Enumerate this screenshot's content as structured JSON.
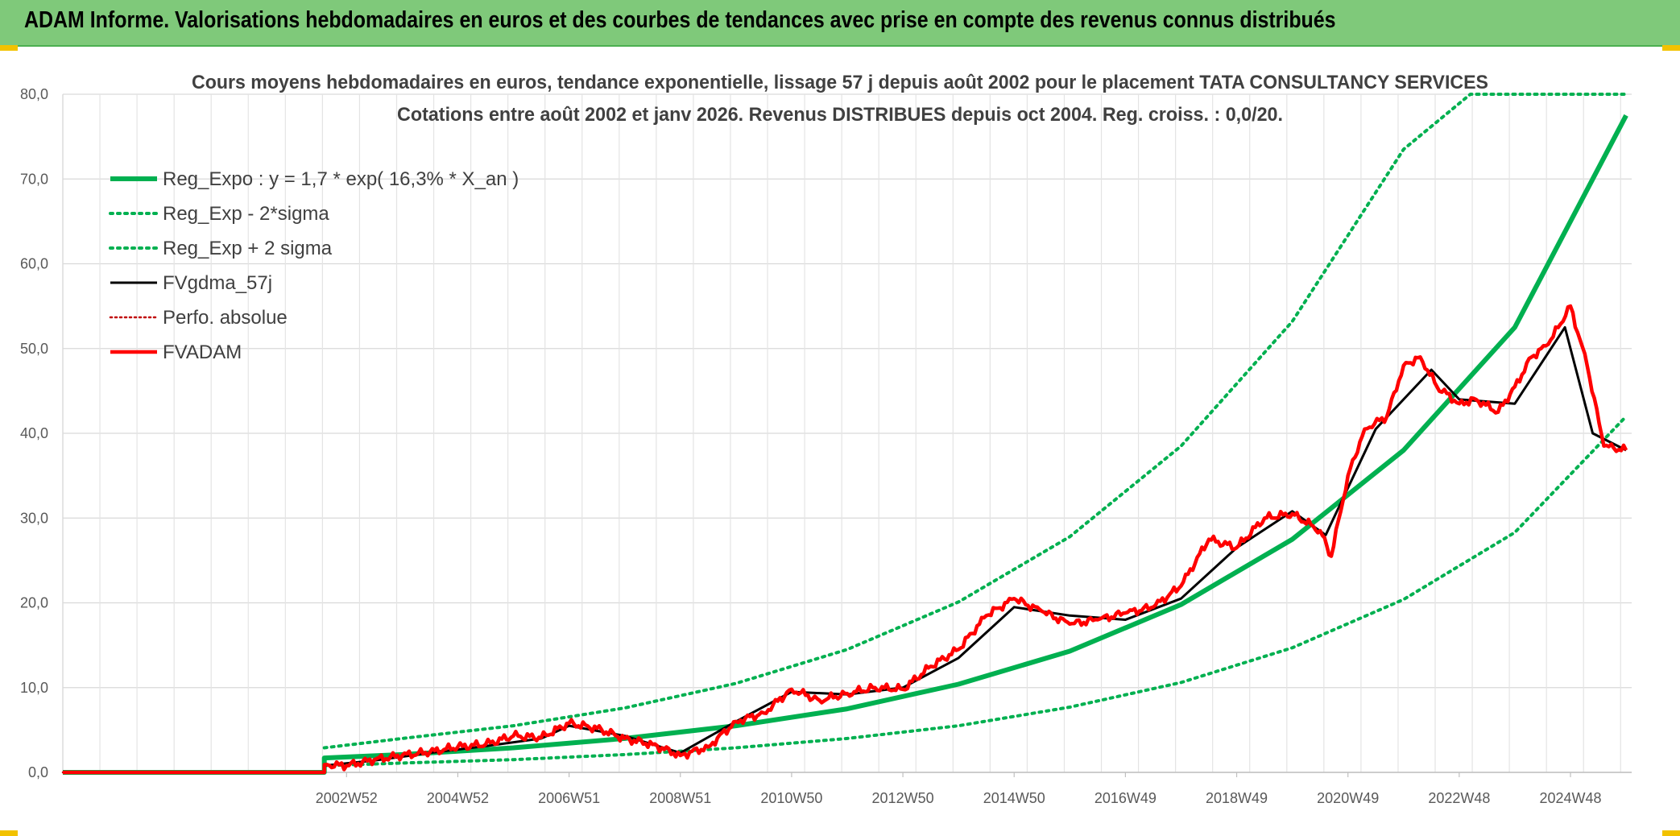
{
  "header": {
    "title": "ADAM Informe. Valorisations hebdomadaires en euros et des courbes de tendances avec prise en compte des revenus connus distribués"
  },
  "colors": {
    "header_bg": "#7fc97a",
    "reg_expo": "#00b050",
    "sigma": "#00b050",
    "fvgdma": "#000000",
    "perfo": "#c00000",
    "fvadam": "#ff0000",
    "corner": "#f2c200"
  },
  "chart_data": {
    "type": "line",
    "title": "Cours moyens hebdomadaires en euros, tendance exponentielle, lissage 57 j depuis août 2002 pour le placement TATA CONSULTANCY SERVICES",
    "subtitle": "Cotations entre août 2002 et janv 2026. Revenus DISTRIBUES depuis oct 2004. Reg. croiss. : 0,0/20.",
    "xlabel": "",
    "ylabel": "",
    "ylim": [
      0,
      80
    ],
    "xlim": [
      1997.9,
      2026.1
    ],
    "y_ticks": [
      "0,0",
      "10,0",
      "20,0",
      "30,0",
      "40,0",
      "50,0",
      "60,0",
      "70,0",
      "80,0"
    ],
    "x_ticks": [
      {
        "label": "2002W52",
        "x": 2003.0
      },
      {
        "label": "2004W52",
        "x": 2005.0
      },
      {
        "label": "2006W51",
        "x": 2007.0
      },
      {
        "label": "2008W51",
        "x": 2009.0
      },
      {
        "label": "2010W50",
        "x": 2011.0
      },
      {
        "label": "2012W50",
        "x": 2013.0
      },
      {
        "label": "2014W50",
        "x": 2015.0
      },
      {
        "label": "2016W49",
        "x": 2017.0
      },
      {
        "label": "2018W49",
        "x": 2019.0
      },
      {
        "label": "2020W49",
        "x": 2021.0
      },
      {
        "label": "2022W48",
        "x": 2023.0
      },
      {
        "label": "2024W48",
        "x": 2025.0
      }
    ],
    "grid": true,
    "legend_position": "top-left",
    "legend": [
      {
        "name": "Reg_Expo : y = 1,7 * exp( 16,3% *  X_an )",
        "style": "solid-thick",
        "color": "#00b050"
      },
      {
        "name": "Reg_Exp - 2*sigma",
        "style": "dotted",
        "color": "#00b050"
      },
      {
        "name": "Reg_Exp + 2 sigma",
        "style": "dotted",
        "color": "#00b050"
      },
      {
        "name": "FVgdma_57j",
        "style": "solid",
        "color": "#000000"
      },
      {
        "name": "Perfo. absolue",
        "style": "dotted",
        "color": "#c00000"
      },
      {
        "name": "FVADAM",
        "style": "solid-thick",
        "color": "#ff0000"
      }
    ],
    "series": [
      {
        "name": "Reg_Expo : y = 1,7 * exp( 16,3% *  X_an )",
        "x": [
          1997.9,
          2002.6,
          2002.6,
          2004,
          2006,
          2008,
          2010,
          2012,
          2014,
          2016,
          2018,
          2020,
          2022,
          2024,
          2026
        ],
        "y": [
          0,
          0,
          1.7,
          2.1,
          2.9,
          4.0,
          5.5,
          7.5,
          10.4,
          14.3,
          19.8,
          27.5,
          38.0,
          52.5,
          77.5
        ]
      },
      {
        "name": "Reg_Exp - 2*sigma",
        "x": [
          2002.6,
          2004,
          2006,
          2008,
          2010,
          2012,
          2014,
          2016,
          2018,
          2020,
          2022,
          2024,
          2026
        ],
        "y": [
          0.8,
          1.1,
          1.5,
          2.1,
          2.9,
          4.0,
          5.5,
          7.7,
          10.6,
          14.7,
          20.4,
          28.3,
          42.0
        ]
      },
      {
        "name": "Reg_Exp + 2 sigma",
        "x": [
          2002.6,
          2004,
          2006,
          2008,
          2010,
          2012,
          2014,
          2016,
          2018,
          2020,
          2022,
          2023.2,
          2026
        ],
        "y": [
          2.9,
          4.0,
          5.5,
          7.6,
          10.5,
          14.5,
          20.1,
          27.8,
          38.5,
          53.2,
          73.5,
          80,
          80
        ]
      },
      {
        "name": "FVgdma_57j",
        "x": [
          2002.6,
          2003.5,
          2004.5,
          2005.5,
          2006.5,
          2007.0,
          2008.0,
          2009.0,
          2010.0,
          2011.0,
          2012.0,
          2013.0,
          2014.0,
          2015.0,
          2016.0,
          2017.0,
          2018.0,
          2019.0,
          2020.0,
          2020.6,
          2021.5,
          2022.5,
          2023.0,
          2024.0,
          2024.9,
          2025.4,
          2026.0
        ],
        "y": [
          0.8,
          1.4,
          2.3,
          3.1,
          4.0,
          5.5,
          4.3,
          2.3,
          6.0,
          9.5,
          9.2,
          10.0,
          13.5,
          19.5,
          18.5,
          18.0,
          20.5,
          26.5,
          30.8,
          28.0,
          40.5,
          47.5,
          44.0,
          43.5,
          52.5,
          40.0,
          38.0
        ]
      },
      {
        "name": "Perfo. absolue",
        "x": [
          1997.9,
          2002.6
        ],
        "y": [
          0,
          0
        ]
      },
      {
        "name": "FVADAM",
        "x": [
          1997.9,
          2002.6,
          2002.6,
          2003.0,
          2003.5,
          2004.0,
          2004.5,
          2005.0,
          2005.5,
          2006.0,
          2006.5,
          2007.0,
          2007.5,
          2008.0,
          2008.5,
          2009.0,
          2009.5,
          2010.0,
          2010.5,
          2011.0,
          2011.5,
          2012.0,
          2012.5,
          2013.0,
          2013.5,
          2014.0,
          2014.5,
          2015.0,
          2015.5,
          2016.0,
          2016.5,
          2017.0,
          2017.5,
          2018.0,
          2018.5,
          2019.0,
          2019.5,
          2020.0,
          2020.5,
          2020.7,
          2021.0,
          2021.3,
          2021.7,
          2022.0,
          2022.3,
          2022.6,
          2023.0,
          2023.3,
          2023.7,
          2024.0,
          2024.3,
          2024.6,
          2025.0,
          2025.3,
          2025.6,
          2026.0
        ],
        "y": [
          0,
          0,
          0.9,
          0.8,
          1.5,
          2.0,
          2.4,
          3.0,
          3.3,
          4.3,
          4.1,
          5.8,
          5.2,
          4.0,
          3.3,
          2.0,
          3.0,
          6.0,
          7.0,
          9.8,
          8.5,
          9.3,
          10.0,
          9.8,
          12.5,
          14.5,
          18.5,
          20.5,
          19.0,
          17.5,
          18.0,
          18.8,
          19.5,
          22.0,
          27.5,
          26.5,
          30.0,
          30.5,
          28.5,
          25.5,
          35.0,
          40.5,
          42.0,
          48.0,
          49.0,
          45.5,
          43.5,
          44.0,
          42.5,
          45.5,
          49.0,
          50.5,
          55.0,
          48.0,
          38.5,
          38.0
        ]
      }
    ]
  }
}
